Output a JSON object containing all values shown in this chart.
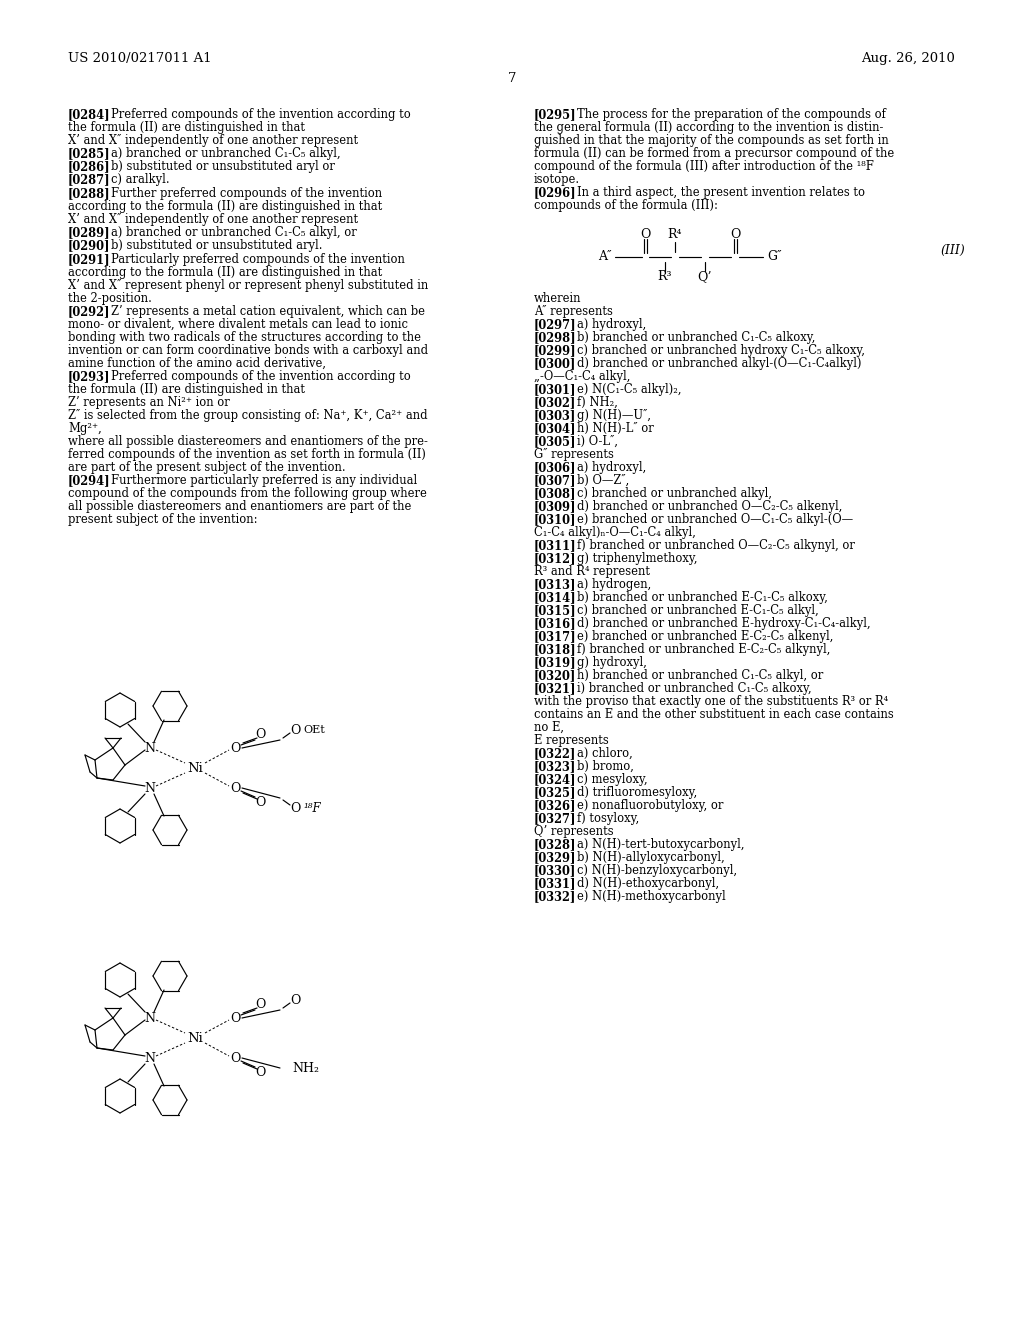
{
  "background_color": "#ffffff",
  "header_left": "US 2010/0217011 A1",
  "header_right": "Aug. 26, 2010",
  "page_number": "7"
}
